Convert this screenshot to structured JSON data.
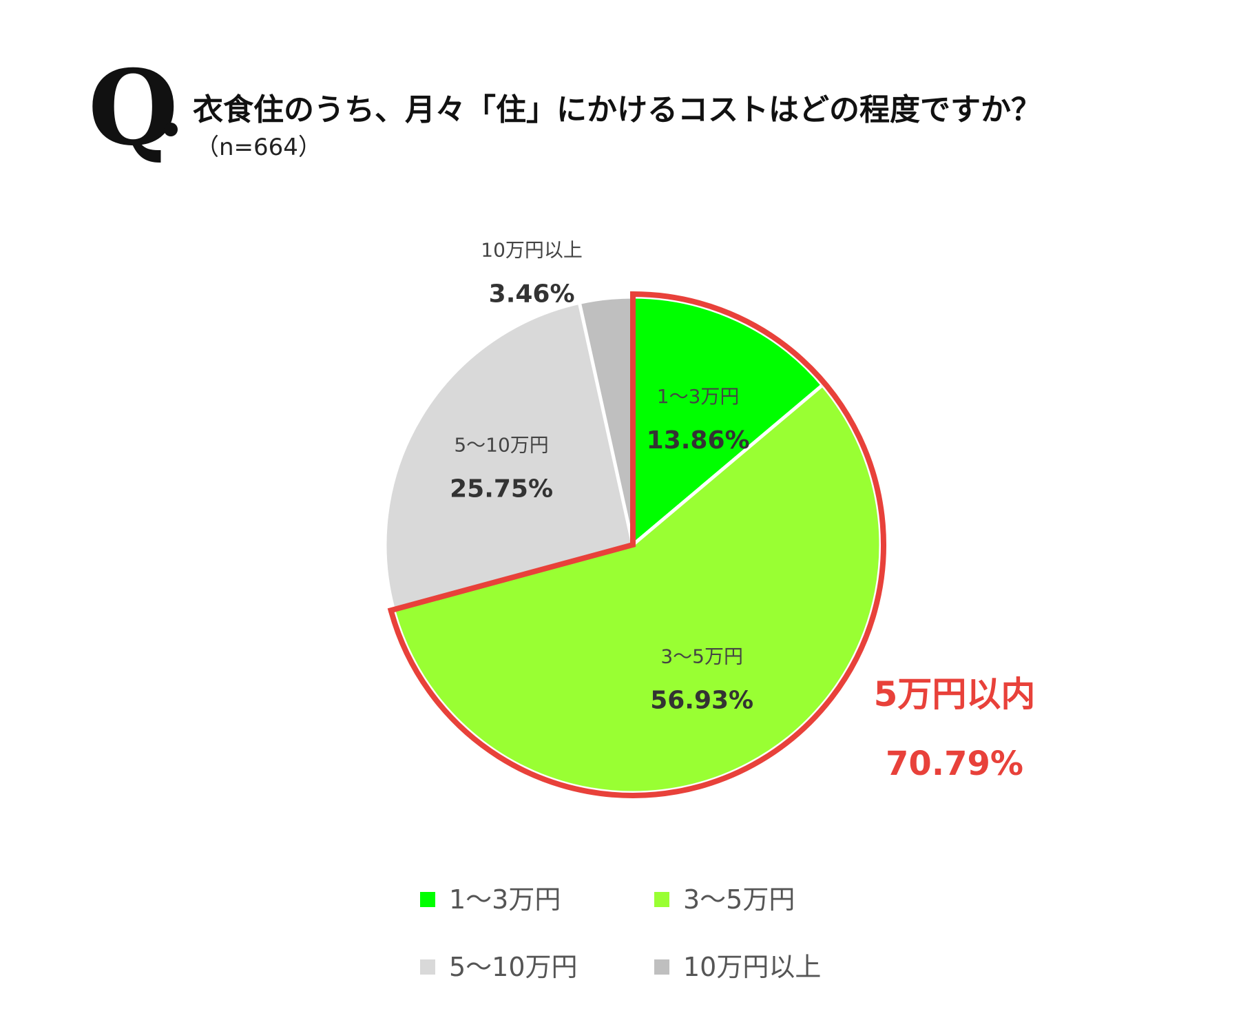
{
  "header": {
    "q_mark": "Q",
    "question": "衣食住のうち、月々「住」にかけるコストはどの程度ですか？",
    "sample": "（n=664）"
  },
  "chart_data": {
    "type": "pie",
    "categories": [
      "1～3万円",
      "3～5万円",
      "5～10万円",
      "10万円以上"
    ],
    "values": [
      13.86,
      56.93,
      25.75,
      3.46
    ],
    "value_labels": [
      "13.86%",
      "56.93%",
      "25.75%",
      "3.46%"
    ],
    "colors": [
      "#00ff00",
      "#99ff33",
      "#d9d9d9",
      "#bfbfbf"
    ],
    "start_angle_deg": 0,
    "direction": "clockwise",
    "highlight": {
      "label": "5万円以内",
      "value": "70.79%",
      "includes": [
        "1～3万円",
        "3～5万円"
      ],
      "color": "#e8413a"
    },
    "legend": {
      "position": "bottom",
      "items": [
        "1～3万円",
        "3～5万円",
        "5～10万円",
        "10万円以上"
      ]
    }
  }
}
